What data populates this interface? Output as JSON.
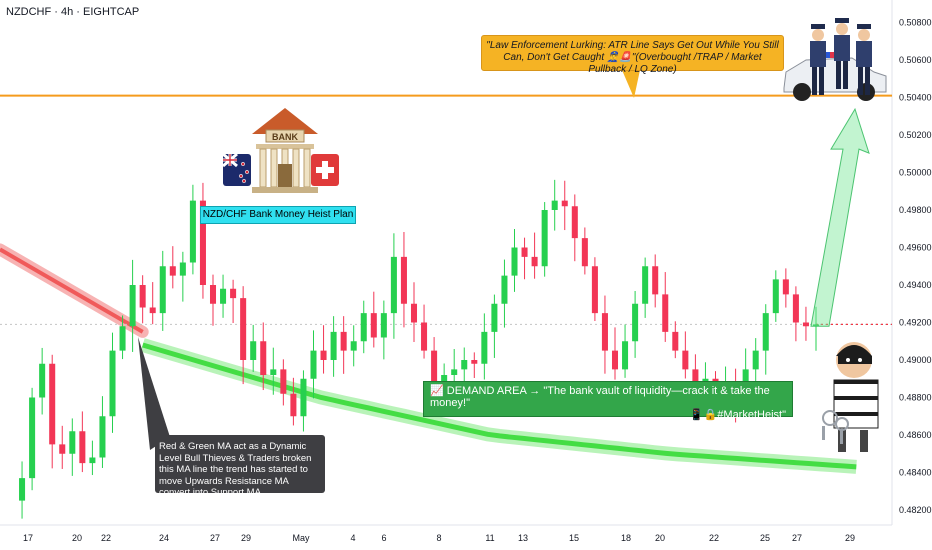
{
  "header": {
    "symbol_line": "NZDCHF · 4h · EIGHTCAP"
  },
  "annotations": {
    "police_note": "\"Law Enforcement Lurking: ATR Line Says Get Out While You Still Can, Don't Get Caught 👮‍♂️🚨\"(Overbought /TRAP / Market Pullback / LQ Zone)",
    "plan_title": "NZD/CHF Bank Money Heist Plan",
    "bank_sign": "BANK",
    "demand_line1": "📈 DEMAND AREA → \"The bank vault of liquidity—crack it & take the money!\"",
    "demand_line2": "📱🔒#MarketHeist\"",
    "ma_note": "Red & Green MA act as a Dynamic Level Bull Thieves & Traders broken this MA line the trend has started to move Upwards Resistance MA convert into Support MA"
  },
  "icons": [
    "bank-icon",
    "new-zealand-flag-icon",
    "switzerland-flag-icon",
    "police-car-icon",
    "police-officers-icon",
    "thief-icon",
    "keys-icon",
    "up-arrow-icon"
  ],
  "colors": {
    "bull": "#26d04f",
    "bear": "#f23656",
    "resistance_line": "#f59b1c",
    "ma_red": "#f05a5a",
    "ma_green": "#44dd44"
  },
  "chart_data": {
    "type": "candlestick",
    "symbol": "NZDCHF",
    "timeframe": "4h",
    "broker": "EIGHTCAP",
    "x_ticks": [
      "17",
      "20",
      "22",
      "24",
      "27",
      "29",
      "May",
      "4",
      "6",
      "8",
      "11",
      "13",
      "15",
      "18",
      "20",
      "22",
      "25",
      "27",
      "29"
    ],
    "y_ticks": [
      "0.48200",
      "0.48400",
      "0.48600",
      "0.48800",
      "0.49000",
      "0.49200",
      "0.49400",
      "0.49600",
      "0.49800",
      "0.50000",
      "0.50200",
      "0.50400",
      "0.50600",
      "0.50800"
    ],
    "ylim": [
      0.4812,
      0.5092
    ],
    "current_price": 0.4919,
    "resistance_level": 0.5041,
    "close_path": [
      0.4825,
      0.4837,
      0.488,
      0.4898,
      0.4855,
      0.485,
      0.4862,
      0.4845,
      0.4848,
      0.487,
      0.4905,
      0.4918,
      0.494,
      0.4928,
      0.4925,
      0.495,
      0.4945,
      0.4952,
      0.4985,
      0.494,
      0.493,
      0.4938,
      0.4933,
      0.49,
      0.491,
      0.4892,
      0.4895,
      0.4882,
      0.487,
      0.489,
      0.4905,
      0.49,
      0.4915,
      0.4905,
      0.491,
      0.4925,
      0.4912,
      0.4925,
      0.4955,
      0.493,
      0.492,
      0.4905,
      0.4888,
      0.4892,
      0.4895,
      0.49,
      0.4898,
      0.4915,
      0.493,
      0.4945,
      0.496,
      0.4955,
      0.495,
      0.498,
      0.4985,
      0.4982,
      0.4965,
      0.495,
      0.4925,
      0.4905,
      0.4895,
      0.491,
      0.493,
      0.495,
      0.4935,
      0.4915,
      0.4905,
      0.4895,
      0.4888,
      0.489,
      0.4885,
      0.4888,
      0.488,
      0.4895,
      0.4905,
      0.4925,
      0.4943,
      0.4935,
      0.492,
      0.4918,
      0.4919
    ],
    "ma_red": {
      "x_fraction": [
        0.0,
        0.16
      ],
      "y": [
        0.4959,
        0.4915
      ]
    },
    "ma_green": {
      "x_fraction": [
        0.16,
        0.36,
        0.55,
        0.75,
        0.96
      ],
      "y": [
        0.4908,
        0.488,
        0.486,
        0.485,
        0.4843
      ]
    },
    "demand_zone": "DEMAND AREA",
    "target_arrow": {
      "from": 0.4918,
      "to": 0.5037
    }
  }
}
